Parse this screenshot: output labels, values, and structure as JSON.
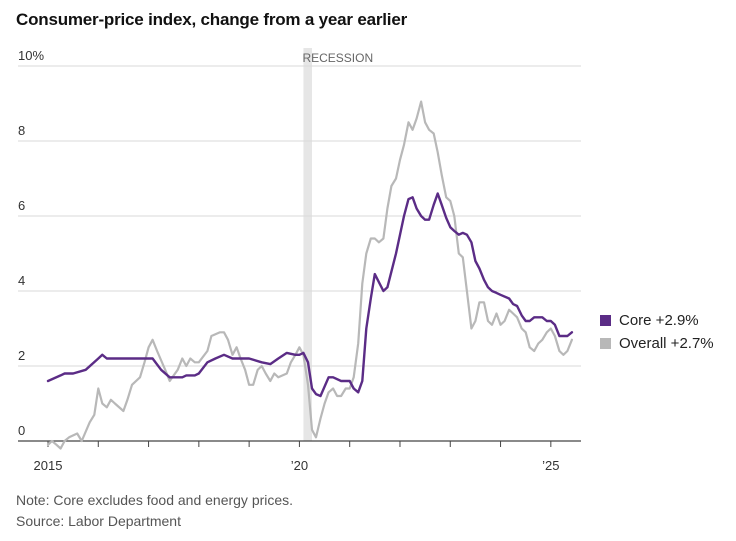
{
  "title": "Consumer-price index, change from a year earlier",
  "notes": {
    "note": "Note: Core excludes food and energy prices.",
    "source": "Source: Labor Department"
  },
  "colors": {
    "core": "#5b2c86",
    "overall": "#b8b8b8",
    "recession": "#e6e6e6",
    "grid": "#d9d9d9"
  },
  "chart_data": {
    "type": "line",
    "title": "Consumer-price index, change from a year earlier",
    "ylim": [
      0,
      10
    ],
    "xlim": [
      2015,
      2025.6
    ],
    "y_ticks": [
      {
        "value": 0,
        "label": "0"
      },
      {
        "value": 2,
        "label": "2"
      },
      {
        "value": 4,
        "label": "4"
      },
      {
        "value": 6,
        "label": "6"
      },
      {
        "value": 8,
        "label": "8"
      },
      {
        "value": 10,
        "label": "10%"
      }
    ],
    "x_ticks": [
      {
        "value": 2015,
        "label": "2015"
      },
      {
        "value": 2020,
        "label": "’20"
      },
      {
        "value": 2025,
        "label": "’25"
      }
    ],
    "recession": {
      "label": "RECESSION",
      "start": 2020.08,
      "end": 2020.25
    },
    "legend_position": "right",
    "series": [
      {
        "name": "Core",
        "legend_label": "Core +2.9%",
        "points": [
          [
            2015.0,
            1.6
          ],
          [
            2015.25,
            1.75
          ],
          [
            2015.33,
            1.8
          ],
          [
            2015.5,
            1.8
          ],
          [
            2015.75,
            1.9
          ],
          [
            2016.0,
            2.2
          ],
          [
            2016.08,
            2.3
          ],
          [
            2016.17,
            2.2
          ],
          [
            2016.33,
            2.2
          ],
          [
            2016.5,
            2.2
          ],
          [
            2016.67,
            2.2
          ],
          [
            2016.75,
            2.2
          ],
          [
            2016.92,
            2.2
          ],
          [
            2017.0,
            2.2
          ],
          [
            2017.08,
            2.2
          ],
          [
            2017.25,
            1.9
          ],
          [
            2017.42,
            1.7
          ],
          [
            2017.67,
            1.7
          ],
          [
            2017.75,
            1.75
          ],
          [
            2017.92,
            1.75
          ],
          [
            2018.0,
            1.8
          ],
          [
            2018.17,
            2.1
          ],
          [
            2018.33,
            2.2
          ],
          [
            2018.5,
            2.3
          ],
          [
            2018.67,
            2.2
          ],
          [
            2018.83,
            2.2
          ],
          [
            2019.0,
            2.2
          ],
          [
            2019.25,
            2.1
          ],
          [
            2019.42,
            2.05
          ],
          [
            2019.58,
            2.2
          ],
          [
            2019.75,
            2.35
          ],
          [
            2019.92,
            2.3
          ],
          [
            2020.0,
            2.3
          ],
          [
            2020.08,
            2.35
          ],
          [
            2020.17,
            2.1
          ],
          [
            2020.25,
            1.4
          ],
          [
            2020.33,
            1.25
          ],
          [
            2020.42,
            1.2
          ],
          [
            2020.58,
            1.7
          ],
          [
            2020.67,
            1.7
          ],
          [
            2020.83,
            1.6
          ],
          [
            2021.0,
            1.6
          ],
          [
            2021.08,
            1.4
          ],
          [
            2021.17,
            1.3
          ],
          [
            2021.25,
            1.6
          ],
          [
            2021.33,
            3.0
          ],
          [
            2021.42,
            3.8
          ],
          [
            2021.5,
            4.45
          ],
          [
            2021.67,
            4.0
          ],
          [
            2021.75,
            4.1
          ],
          [
            2021.92,
            5.0
          ],
          [
            2022.0,
            5.5
          ],
          [
            2022.08,
            6.0
          ],
          [
            2022.17,
            6.45
          ],
          [
            2022.25,
            6.5
          ],
          [
            2022.33,
            6.2
          ],
          [
            2022.42,
            6.0
          ],
          [
            2022.5,
            5.9
          ],
          [
            2022.58,
            5.9
          ],
          [
            2022.67,
            6.3
          ],
          [
            2022.75,
            6.6
          ],
          [
            2022.83,
            6.3
          ],
          [
            2022.92,
            5.95
          ],
          [
            2023.0,
            5.7
          ],
          [
            2023.08,
            5.6
          ],
          [
            2023.17,
            5.5
          ],
          [
            2023.25,
            5.55
          ],
          [
            2023.33,
            5.5
          ],
          [
            2023.42,
            5.3
          ],
          [
            2023.5,
            4.8
          ],
          [
            2023.58,
            4.6
          ],
          [
            2023.67,
            4.3
          ],
          [
            2023.75,
            4.1
          ],
          [
            2023.83,
            4.0
          ],
          [
            2023.92,
            3.95
          ],
          [
            2024.0,
            3.9
          ],
          [
            2024.17,
            3.8
          ],
          [
            2024.25,
            3.65
          ],
          [
            2024.33,
            3.6
          ],
          [
            2024.42,
            3.35
          ],
          [
            2024.5,
            3.2
          ],
          [
            2024.58,
            3.2
          ],
          [
            2024.67,
            3.3
          ],
          [
            2024.83,
            3.3
          ],
          [
            2024.92,
            3.2
          ],
          [
            2025.0,
            3.2
          ],
          [
            2025.08,
            3.1
          ],
          [
            2025.17,
            2.8
          ],
          [
            2025.25,
            2.8
          ],
          [
            2025.33,
            2.8
          ],
          [
            2025.42,
            2.9
          ]
        ]
      },
      {
        "name": "Overall",
        "legend_label": "Overall +2.7%",
        "points": [
          [
            2015.0,
            -0.1
          ],
          [
            2015.08,
            0.0
          ],
          [
            2015.17,
            -0.1
          ],
          [
            2015.25,
            -0.2
          ],
          [
            2015.33,
            0.0
          ],
          [
            2015.42,
            0.1
          ],
          [
            2015.58,
            0.2
          ],
          [
            2015.67,
            0.0
          ],
          [
            2015.83,
            0.5
          ],
          [
            2015.92,
            0.7
          ],
          [
            2016.0,
            1.4
          ],
          [
            2016.08,
            1.0
          ],
          [
            2016.17,
            0.9
          ],
          [
            2016.25,
            1.1
          ],
          [
            2016.33,
            1.0
          ],
          [
            2016.5,
            0.8
          ],
          [
            2016.58,
            1.1
          ],
          [
            2016.67,
            1.5
          ],
          [
            2016.83,
            1.7
          ],
          [
            2016.92,
            2.1
          ],
          [
            2017.0,
            2.5
          ],
          [
            2017.08,
            2.7
          ],
          [
            2017.17,
            2.4
          ],
          [
            2017.33,
            1.9
          ],
          [
            2017.42,
            1.6
          ],
          [
            2017.58,
            1.9
          ],
          [
            2017.67,
            2.2
          ],
          [
            2017.75,
            2.0
          ],
          [
            2017.83,
            2.2
          ],
          [
            2017.92,
            2.1
          ],
          [
            2018.0,
            2.1
          ],
          [
            2018.17,
            2.4
          ],
          [
            2018.25,
            2.8
          ],
          [
            2018.42,
            2.9
          ],
          [
            2018.5,
            2.9
          ],
          [
            2018.58,
            2.7
          ],
          [
            2018.67,
            2.3
          ],
          [
            2018.75,
            2.5
          ],
          [
            2018.83,
            2.2
          ],
          [
            2018.92,
            1.9
          ],
          [
            2019.0,
            1.5
          ],
          [
            2019.08,
            1.5
          ],
          [
            2019.17,
            1.9
          ],
          [
            2019.25,
            2.0
          ],
          [
            2019.33,
            1.8
          ],
          [
            2019.42,
            1.6
          ],
          [
            2019.5,
            1.8
          ],
          [
            2019.58,
            1.7
          ],
          [
            2019.75,
            1.8
          ],
          [
            2019.83,
            2.1
          ],
          [
            2019.92,
            2.3
          ],
          [
            2020.0,
            2.5
          ],
          [
            2020.08,
            2.3
          ],
          [
            2020.17,
            1.5
          ],
          [
            2020.25,
            0.3
          ],
          [
            2020.33,
            0.1
          ],
          [
            2020.42,
            0.6
          ],
          [
            2020.5,
            1.0
          ],
          [
            2020.58,
            1.3
          ],
          [
            2020.67,
            1.4
          ],
          [
            2020.75,
            1.2
          ],
          [
            2020.83,
            1.2
          ],
          [
            2020.92,
            1.4
          ],
          [
            2021.0,
            1.4
          ],
          [
            2021.08,
            1.7
          ],
          [
            2021.17,
            2.6
          ],
          [
            2021.25,
            4.2
          ],
          [
            2021.33,
            5.0
          ],
          [
            2021.42,
            5.4
          ],
          [
            2021.5,
            5.4
          ],
          [
            2021.58,
            5.3
          ],
          [
            2021.67,
            5.4
          ],
          [
            2021.75,
            6.2
          ],
          [
            2021.83,
            6.8
          ],
          [
            2021.92,
            7.0
          ],
          [
            2022.0,
            7.5
          ],
          [
            2022.08,
            7.9
          ],
          [
            2022.17,
            8.5
          ],
          [
            2022.25,
            8.3
          ],
          [
            2022.33,
            8.6
          ],
          [
            2022.42,
            9.05
          ],
          [
            2022.5,
            8.5
          ],
          [
            2022.58,
            8.3
          ],
          [
            2022.67,
            8.2
          ],
          [
            2022.75,
            7.7
          ],
          [
            2022.83,
            7.1
          ],
          [
            2022.92,
            6.5
          ],
          [
            2023.0,
            6.4
          ],
          [
            2023.08,
            6.0
          ],
          [
            2023.17,
            5.0
          ],
          [
            2023.25,
            4.9
          ],
          [
            2023.33,
            4.0
          ],
          [
            2023.42,
            3.0
          ],
          [
            2023.5,
            3.2
          ],
          [
            2023.58,
            3.7
          ],
          [
            2023.67,
            3.7
          ],
          [
            2023.75,
            3.2
          ],
          [
            2023.83,
            3.1
          ],
          [
            2023.92,
            3.4
          ],
          [
            2024.0,
            3.1
          ],
          [
            2024.08,
            3.2
          ],
          [
            2024.17,
            3.5
          ],
          [
            2024.25,
            3.4
          ],
          [
            2024.33,
            3.3
          ],
          [
            2024.42,
            3.0
          ],
          [
            2024.5,
            2.9
          ],
          [
            2024.58,
            2.5
          ],
          [
            2024.67,
            2.4
          ],
          [
            2024.75,
            2.6
          ],
          [
            2024.83,
            2.7
          ],
          [
            2024.92,
            2.9
          ],
          [
            2025.0,
            3.0
          ],
          [
            2025.08,
            2.8
          ],
          [
            2025.17,
            2.4
          ],
          [
            2025.25,
            2.3
          ],
          [
            2025.33,
            2.4
          ],
          [
            2025.42,
            2.7
          ]
        ]
      }
    ]
  }
}
